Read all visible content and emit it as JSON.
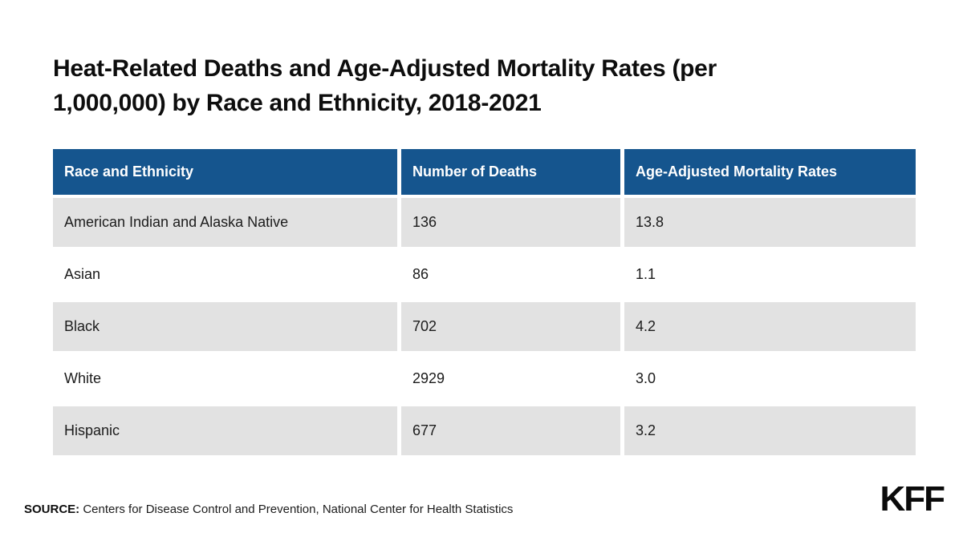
{
  "page": {
    "title_lines": [
      "Heat-Related Deaths and Age-Adjusted Mortality Rates (per",
      "1,000,000) by Race and Ethnicity, 2018-2021"
    ]
  },
  "table": {
    "columns": {
      "race": "Race and Ethnicity",
      "deaths": "Number of Deaths",
      "rate": "Age-Adjusted Mortality Rates"
    },
    "rows": [
      {
        "race": "American Indian and Alaska Native",
        "deaths": "136",
        "rate": "13.8"
      },
      {
        "race": "Asian",
        "deaths": "86",
        "rate": "1.1"
      },
      {
        "race": "Black",
        "deaths": "702",
        "rate": "4.2"
      },
      {
        "race": "White",
        "deaths": "2929",
        "rate": "3.0"
      },
      {
        "race": "Hispanic",
        "deaths": "677",
        "rate": "3.2"
      }
    ]
  },
  "footer": {
    "source_label": "SOURCE:",
    "source_text": " Centers for Disease Control and Prevention, National Center for Health Statistics",
    "logo_text": "KFF"
  },
  "colors": {
    "header_blue": "#15558e",
    "row_gray": "#e2e2e2",
    "title_black": "#0d0d0d",
    "background": "#ffffff"
  },
  "chart_data": {
    "type": "table",
    "title": "Heat-Related Deaths and Age-Adjusted Mortality Rates (per 1,000,000) by Race and Ethnicity, 2018-2021",
    "columns": [
      "Race and Ethnicity",
      "Number of Deaths",
      "Age-Adjusted Mortality Rates"
    ],
    "rows": [
      [
        "American Indian and Alaska Native",
        136,
        13.8
      ],
      [
        "Asian",
        86,
        1.1
      ],
      [
        "Black",
        702,
        4.2
      ],
      [
        "White",
        2929,
        3.0
      ],
      [
        "Hispanic",
        677,
        3.2
      ]
    ],
    "source": "Centers for Disease Control and Prevention, National Center for Health Statistics",
    "layout_hints": {
      "zebra_striping": true,
      "header_background": "#15558e",
      "stripe_color": "#e2e2e2"
    }
  }
}
